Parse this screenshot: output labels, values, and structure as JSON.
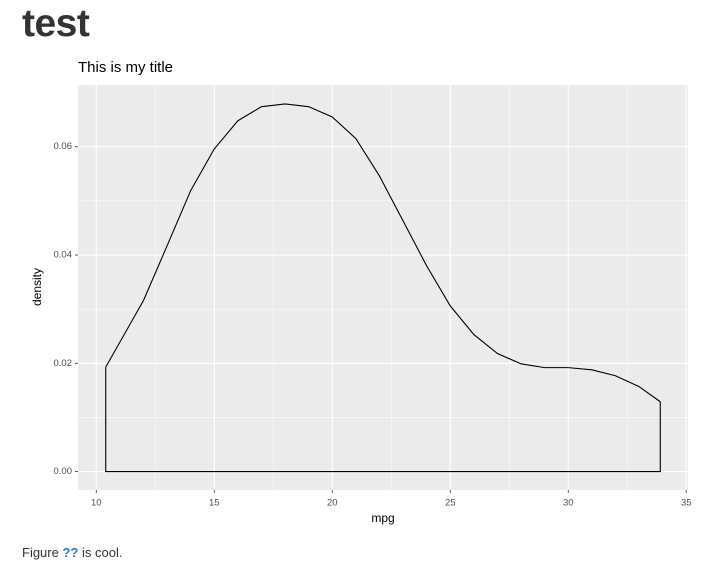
{
  "header": {
    "title": "test"
  },
  "chart_data": {
    "type": "area",
    "title": "This is my title",
    "x_label": "mpg",
    "y_label": "density",
    "x": [
      10.4,
      12,
      13,
      14,
      15,
      16,
      17,
      18,
      19,
      20,
      21,
      22,
      23,
      24,
      25,
      26,
      27,
      28,
      29,
      30,
      31,
      32,
      33,
      33.9
    ],
    "series": [
      {
        "name": "density",
        "color": "#000000",
        "values": [
          0.0193,
          0.0316,
          0.0417,
          0.0519,
          0.0596,
          0.0648,
          0.0674,
          0.0679,
          0.0674,
          0.0655,
          0.0615,
          0.0546,
          0.0463,
          0.038,
          0.0306,
          0.0253,
          0.0218,
          0.0199,
          0.0192,
          0.0192,
          0.0188,
          0.0177,
          0.0157,
          0.0129
        ]
      }
    ],
    "xlim": [
      9.225,
      35.075
    ],
    "xticks": [
      10,
      15,
      20,
      25,
      30,
      35
    ],
    "ylim": [
      -0.0034,
      0.0714
    ],
    "yticks": [
      {
        "value": 0,
        "label": "0.00"
      },
      0.02,
      0.04,
      0.06
    ],
    "grid": true,
    "background": "#EBEBEB"
  },
  "caption": {
    "prefix": "Figure",
    "ref": "??",
    "suffix": "is cool."
  }
}
